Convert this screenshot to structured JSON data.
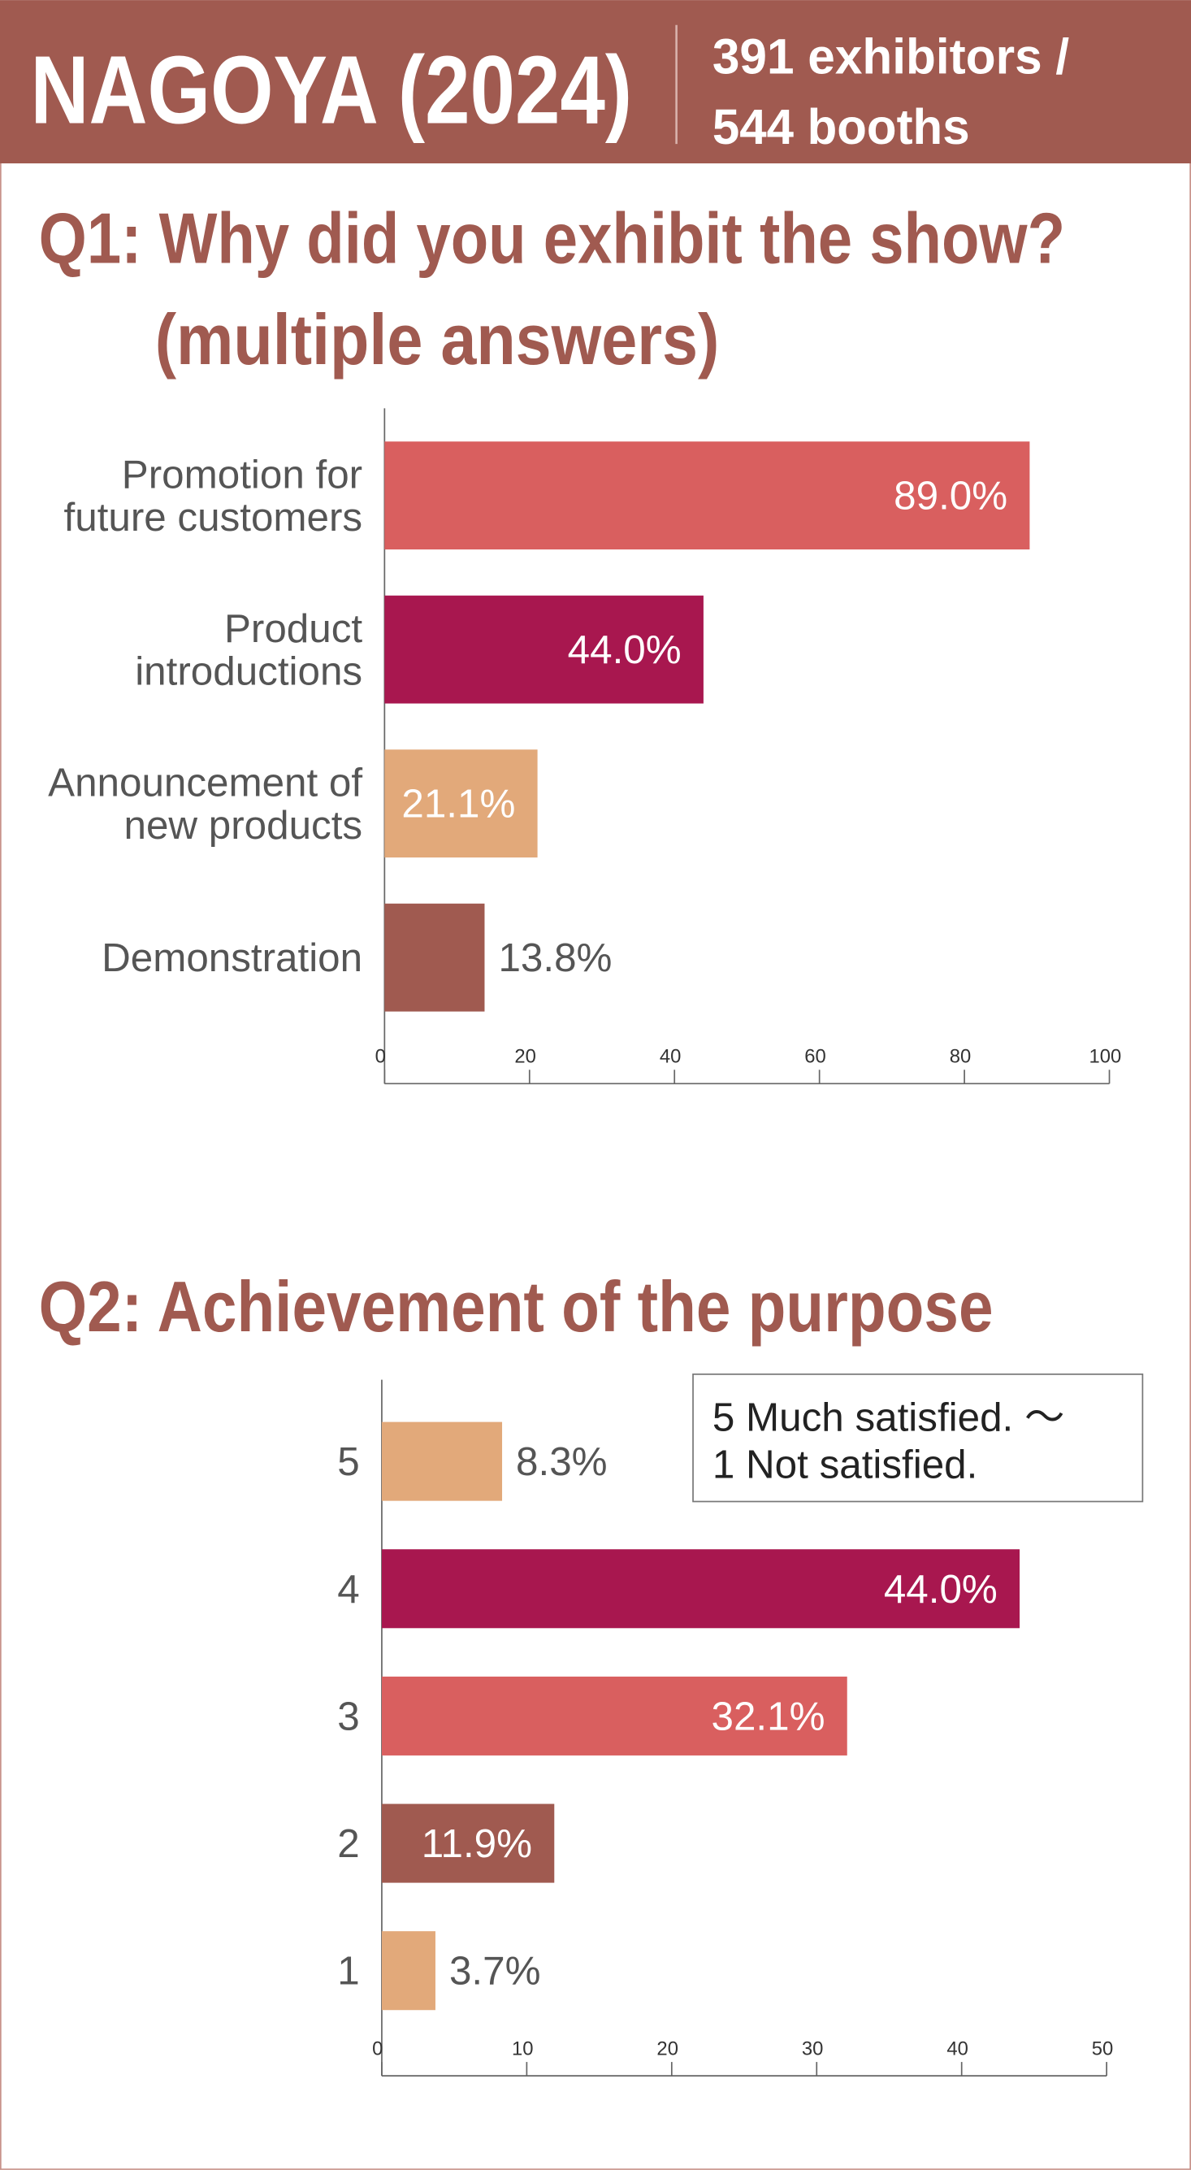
{
  "header": {
    "title": "NAGOYA (2024)",
    "info": [
      "391 exhibitors /",
      "544 booths"
    ]
  },
  "chart_data": [
    {
      "type": "barh",
      "title": "Q1: Why did you exhibit the show?",
      "subtitle": "(multiple answers)",
      "categories": [
        "Promotion for\nfuture customers",
        "Product\nintroductions",
        "Announcement of\nnew products",
        "Demonstration"
      ],
      "values": [
        89.0,
        44.0,
        21.1,
        13.8
      ],
      "value_labels": [
        "89.0%",
        "44.0%",
        "21.1%",
        "13.8%"
      ],
      "colors": [
        "#d95f5f",
        "#a8174f",
        "#e2a97a",
        "#a05a50"
      ],
      "xlim": [
        0,
        100
      ],
      "xticks": [
        0,
        20,
        40,
        60,
        80,
        100
      ]
    },
    {
      "type": "barh",
      "title": "Q2: Achievement of the purpose",
      "note": "5 Much satisfied. ～\n1 Not satisfied.",
      "categories": [
        "5",
        "4",
        "3",
        "2",
        "1"
      ],
      "values": [
        8.3,
        44.0,
        32.1,
        11.9,
        3.7
      ],
      "value_labels": [
        "8.3%",
        "44.0%",
        "32.1%",
        "11.9%",
        "3.7%"
      ],
      "colors": [
        "#e2a97a",
        "#a8174f",
        "#d95f5f",
        "#a05a50",
        "#e2a97a"
      ],
      "xlim": [
        0,
        50
      ],
      "xticks": [
        0,
        10,
        20,
        30,
        40,
        50
      ]
    }
  ]
}
